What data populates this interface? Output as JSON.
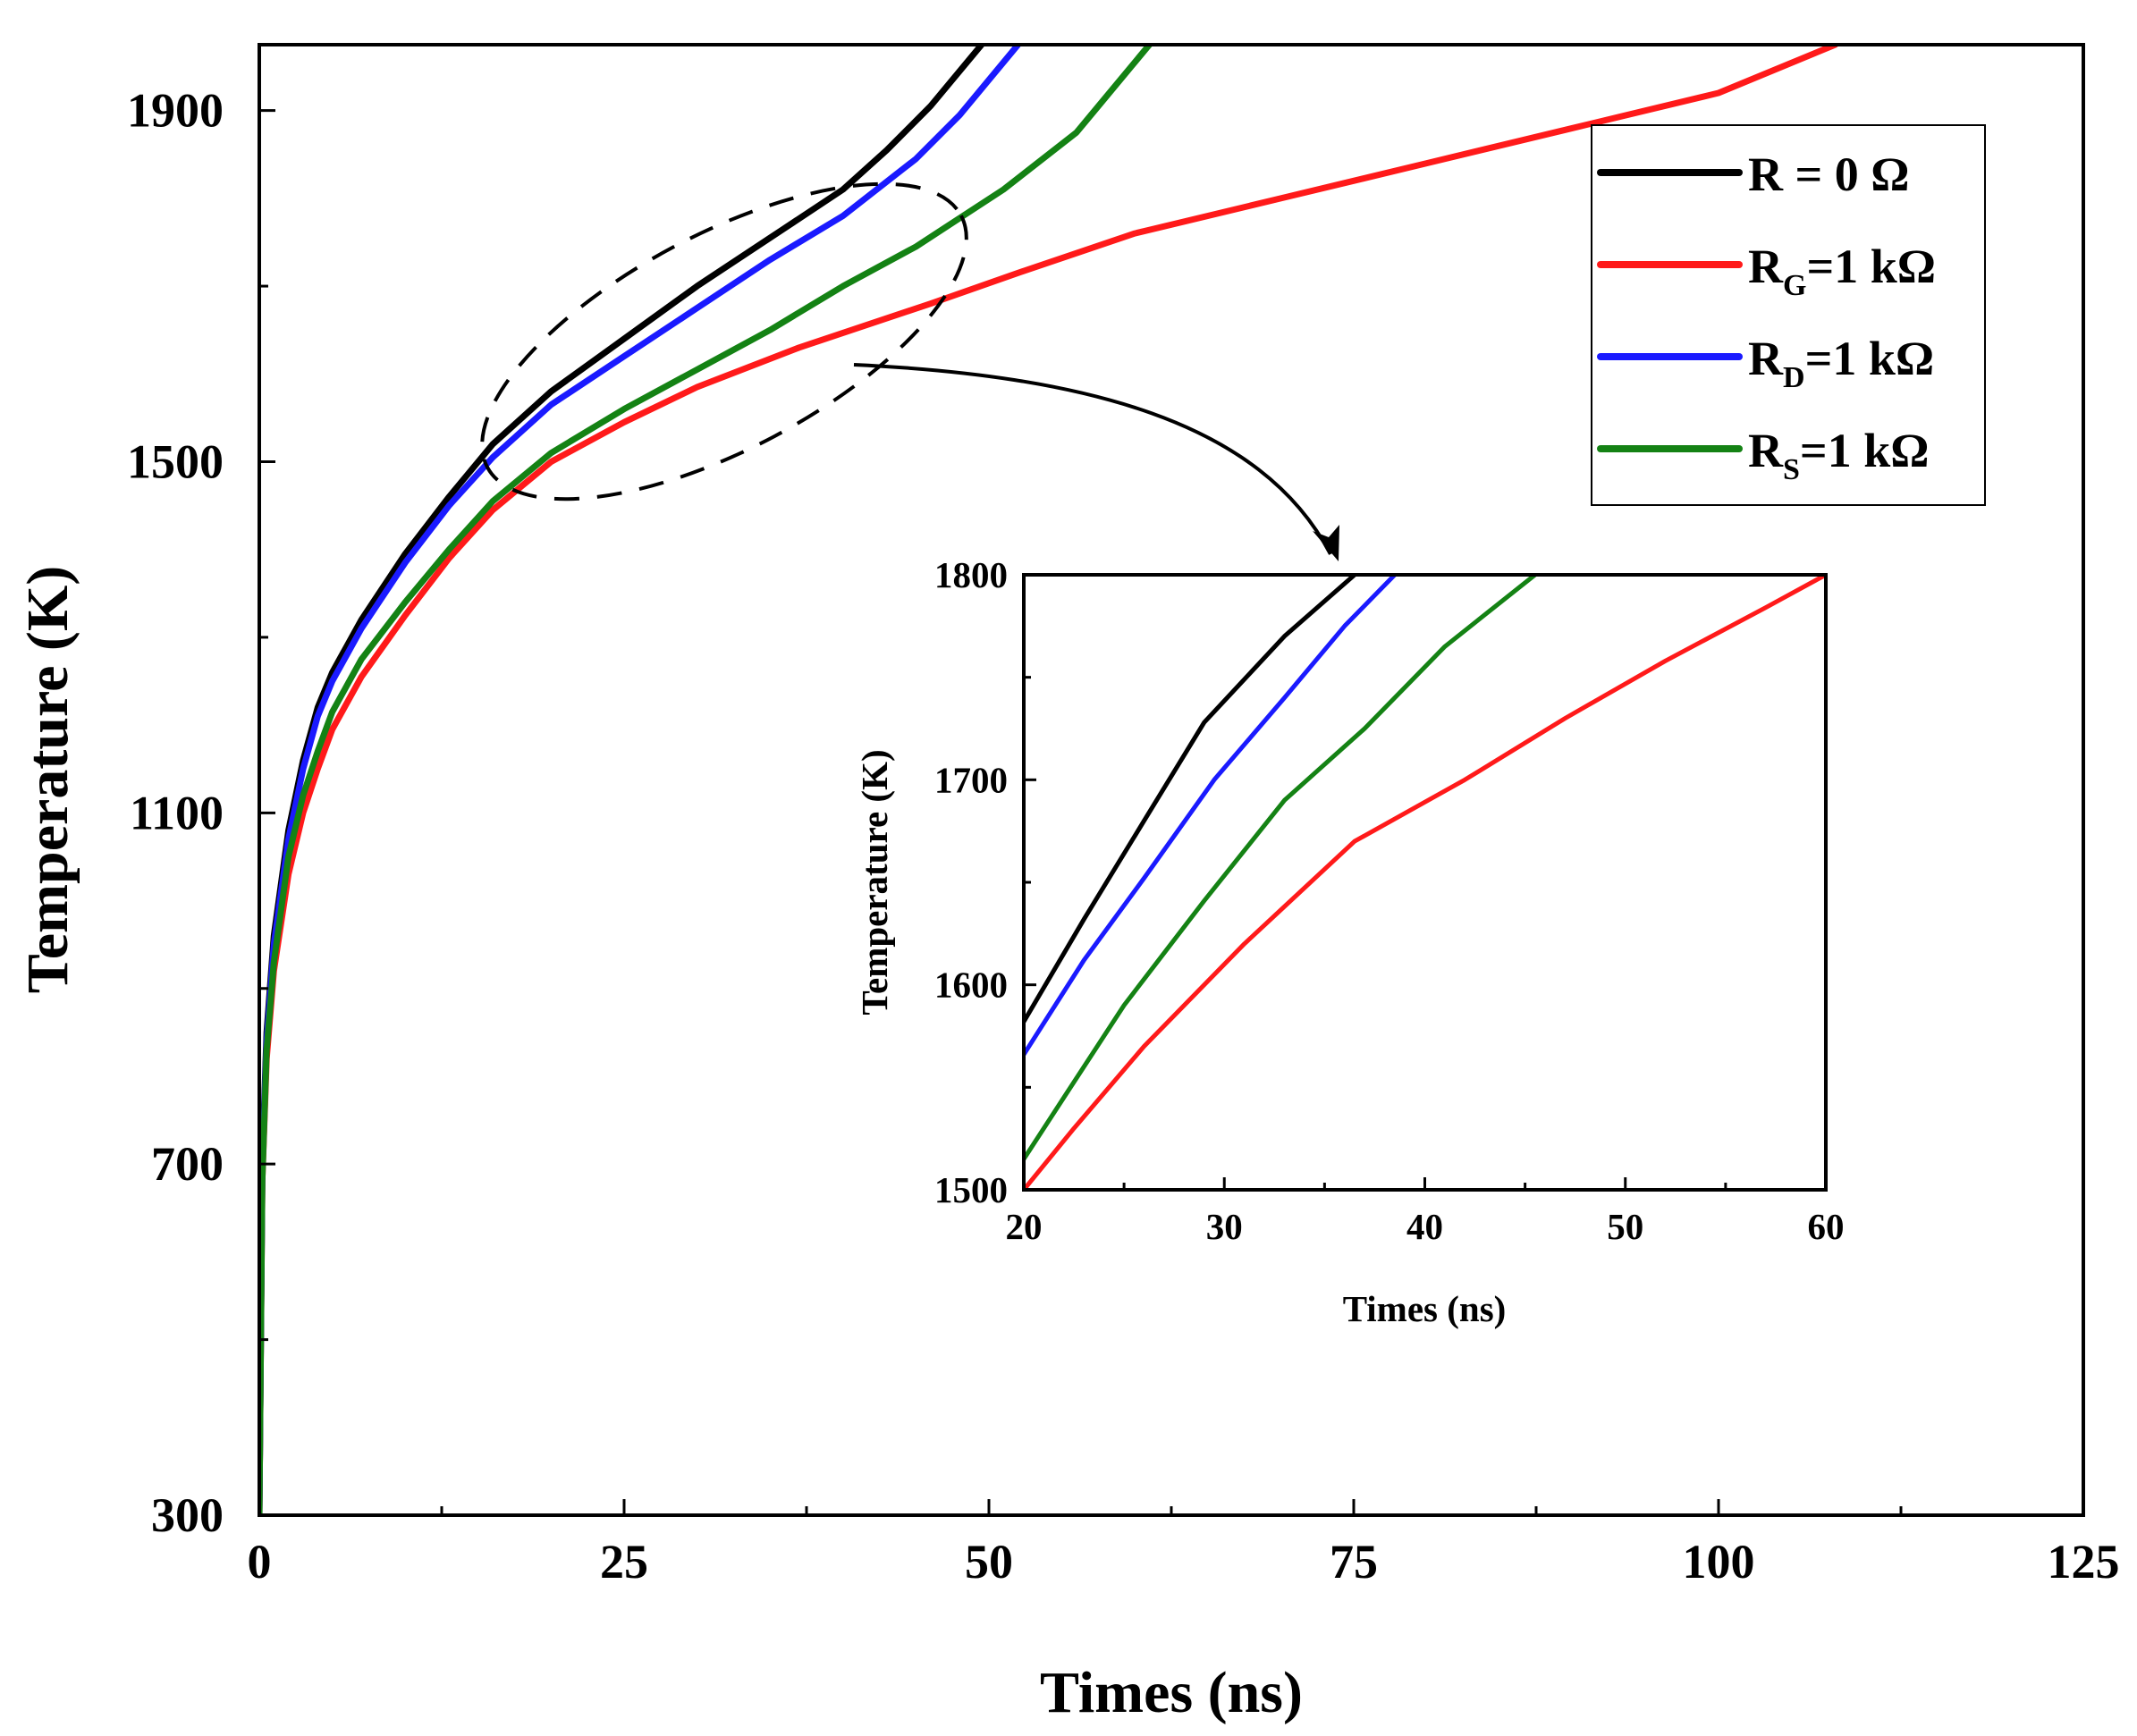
{
  "chart_data": [
    {
      "id": "main",
      "type": "line",
      "xlabel": "Times (ns)",
      "ylabel": "Temperature (K)",
      "xlim": [
        0,
        125
      ],
      "ylim": [
        300,
        1975
      ],
      "xticks": [
        0,
        25,
        50,
        75,
        100,
        125
      ],
      "xtick_labels": [
        "0",
        "25",
        "50",
        "75",
        "100",
        "125"
      ],
      "yticks": [
        300,
        700,
        1100,
        1500,
        1900
      ],
      "ytick_labels": [
        "300",
        "700",
        "1100",
        "1500",
        "1900"
      ],
      "legend": {
        "position": "top-right",
        "entries": [
          {
            "base": "R = 0 Ω",
            "sub": "",
            "tail": "",
            "color": "#000000"
          },
          {
            "base": "R",
            "sub": "G",
            "tail": "=1 kΩ",
            "color": "#ff1a1a"
          },
          {
            "base": "R",
            "sub": "D",
            "tail": "=1 kΩ",
            "color": "#1a1aff"
          },
          {
            "base": "R",
            "sub": "S",
            "tail": "=1 kΩ",
            "color": "#148214"
          }
        ]
      },
      "series": [
        {
          "name": "R = 0 Ω",
          "color": "#000000",
          "x": [
            0,
            0.2,
            0.5,
            1,
            2,
            3,
            4,
            5,
            7,
            10,
            13,
            16,
            20,
            25,
            30,
            35,
            40,
            43,
            46,
            49.5
          ],
          "y": [
            300,
            700,
            850,
            960,
            1080,
            1160,
            1220,
            1260,
            1320,
            1395,
            1460,
            1520,
            1580,
            1640,
            1700,
            1755,
            1810,
            1855,
            1905,
            1975
          ]
        },
        {
          "name": "RG=1 kΩ",
          "color": "#ff1a1a",
          "x": [
            0,
            0.2,
            0.5,
            1,
            2,
            3,
            4,
            5,
            7,
            10,
            13,
            16,
            20,
            25,
            30,
            37,
            46,
            52,
            60,
            70,
            80,
            90,
            100,
            108
          ],
          "y": [
            300,
            680,
            820,
            920,
            1030,
            1100,
            1150,
            1195,
            1255,
            1325,
            1390,
            1445,
            1500,
            1545,
            1585,
            1630,
            1680,
            1715,
            1760,
            1800,
            1840,
            1880,
            1920,
            1975
          ]
        },
        {
          "name": "RD=1 kΩ",
          "color": "#1a1aff",
          "x": [
            0,
            0.2,
            0.5,
            1,
            2,
            3,
            4,
            5,
            7,
            10,
            13,
            16,
            20,
            25,
            30,
            35,
            40,
            45,
            48,
            52
          ],
          "y": [
            300,
            690,
            840,
            950,
            1070,
            1150,
            1210,
            1250,
            1310,
            1385,
            1450,
            1505,
            1565,
            1620,
            1675,
            1730,
            1780,
            1845,
            1895,
            1975
          ]
        },
        {
          "name": "RS=1 kΩ",
          "color": "#148214",
          "x": [
            0,
            0.2,
            0.5,
            1,
            2,
            3,
            4,
            5,
            7,
            10,
            13,
            16,
            20,
            25,
            30,
            35,
            40,
            45,
            51,
            56,
            61
          ],
          "y": [
            300,
            680,
            830,
            930,
            1050,
            1120,
            1170,
            1215,
            1275,
            1340,
            1400,
            1455,
            1510,
            1560,
            1605,
            1650,
            1700,
            1745,
            1810,
            1875,
            1975
          ]
        }
      ]
    },
    {
      "id": "inset",
      "type": "line",
      "xlabel": "Times (ns)",
      "ylabel": "Temperature (K)",
      "xlim": [
        20,
        60
      ],
      "ylim": [
        1500,
        1800
      ],
      "xticks": [
        20,
        30,
        40,
        50,
        60
      ],
      "xtick_labels": [
        "20",
        "30",
        "40",
        "50",
        "60"
      ],
      "yticks": [
        1500,
        1600,
        1700,
        1800
      ],
      "ytick_labels": [
        "1500",
        "1600",
        "1700",
        "1800"
      ],
      "series": [
        {
          "name": "R = 0 Ω",
          "color": "#000000",
          "x": [
            20,
            23,
            26,
            29,
            33,
            36.5
          ],
          "y": [
            1582,
            1632,
            1680,
            1728,
            1770,
            1800
          ]
        },
        {
          "name": "RG=1 kΩ",
          "color": "#ff1a1a",
          "x": [
            20,
            22.5,
            26,
            31,
            36.5,
            42,
            47,
            52,
            57,
            60
          ],
          "y": [
            1500,
            1530,
            1570,
            1620,
            1670,
            1700,
            1730,
            1758,
            1784,
            1800
          ]
        },
        {
          "name": "RD=1 kΩ",
          "color": "#1a1aff",
          "x": [
            20,
            23,
            26,
            29.5,
            33,
            36,
            38.5
          ],
          "y": [
            1566,
            1612,
            1652,
            1700,
            1740,
            1775,
            1800
          ]
        },
        {
          "name": "RS=1 kΩ",
          "color": "#148214",
          "x": [
            20,
            22,
            25,
            29,
            33,
            37,
            41,
            45.5
          ],
          "y": [
            1515,
            1545,
            1590,
            1641,
            1690,
            1725,
            1765,
            1800
          ]
        }
      ]
    }
  ]
}
